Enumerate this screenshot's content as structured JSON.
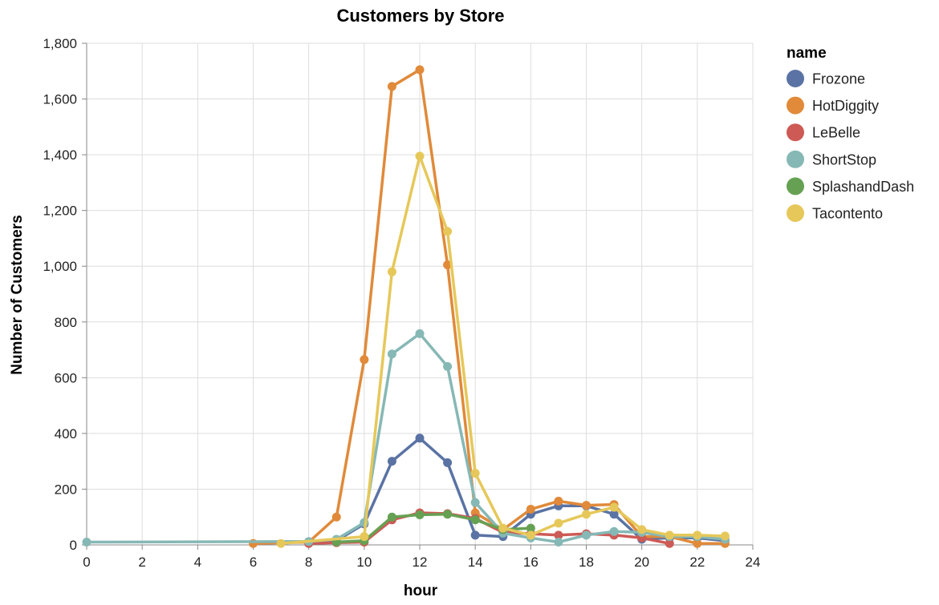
{
  "chart_data": {
    "type": "line",
    "title": "Customers by Store",
    "xlabel": "hour",
    "ylabel": "Number of Customers",
    "xlim": [
      0,
      24
    ],
    "ylim": [
      0,
      1800
    ],
    "x_ticks": [
      0,
      2,
      4,
      6,
      8,
      10,
      12,
      14,
      16,
      18,
      20,
      22,
      24
    ],
    "y_ticks": [
      0,
      200,
      400,
      600,
      800,
      1000,
      1200,
      1400,
      1600,
      1800
    ],
    "x_tick_labels": [
      "0",
      "2",
      "4",
      "6",
      "8",
      "10",
      "12",
      "14",
      "16",
      "18",
      "20",
      "22",
      "24"
    ],
    "y_tick_labels": [
      "0",
      "200",
      "400",
      "600",
      "800",
      "1,000",
      "1,200",
      "1,400",
      "1,600",
      "1,800"
    ],
    "grid": true,
    "legend": {
      "title": "name",
      "placement": "right"
    },
    "series": [
      {
        "name": "Frozone",
        "color": "#5a73a4",
        "x": [
          8,
          9,
          10,
          11,
          12,
          13,
          14,
          15,
          16,
          17,
          18,
          19,
          20,
          21,
          22,
          23
        ],
        "y": [
          12,
          15,
          75,
          300,
          383,
          295,
          35,
          30,
          110,
          140,
          140,
          110,
          20,
          25,
          25,
          15
        ]
      },
      {
        "name": "HotDiggity",
        "color": "#e08a3a",
        "x": [
          6,
          8,
          9,
          10,
          11,
          12,
          13,
          14,
          15,
          16,
          17,
          18,
          19,
          20,
          21,
          22,
          23
        ],
        "y": [
          5,
          10,
          100,
          665,
          1645,
          1705,
          1005,
          115,
          55,
          128,
          157,
          142,
          145,
          30,
          30,
          5,
          5
        ]
      },
      {
        "name": "LeBelle",
        "color": "#cd5a55",
        "x": [
          8,
          9,
          10,
          11,
          12,
          13,
          14,
          15,
          16,
          17,
          18,
          19,
          20,
          21
        ],
        "y": [
          5,
          8,
          10,
          90,
          115,
          112,
          95,
          45,
          40,
          35,
          40,
          35,
          25,
          5
        ]
      },
      {
        "name": "ShortStop",
        "color": "#86b8b5",
        "x": [
          0,
          8,
          9,
          10,
          11,
          12,
          13,
          14,
          15,
          16,
          17,
          18,
          19,
          20,
          21,
          22,
          23
        ],
        "y": [
          10,
          12,
          20,
          80,
          685,
          758,
          640,
          152,
          42,
          25,
          10,
          35,
          48,
          45,
          30,
          30,
          20
        ]
      },
      {
        "name": "SplashandDash",
        "color": "#66a153",
        "x": [
          9,
          10,
          11,
          12,
          13,
          14,
          15,
          16
        ],
        "y": [
          10,
          15,
          100,
          108,
          110,
          90,
          55,
          60
        ]
      },
      {
        "name": "Tacontento",
        "color": "#e6c85a",
        "x": [
          7,
          10,
          11,
          12,
          13,
          14,
          15,
          16,
          17,
          18,
          19,
          20,
          21,
          22,
          23
        ],
        "y": [
          5,
          30,
          980,
          1395,
          1125,
          257,
          60,
          35,
          78,
          110,
          135,
          55,
          35,
          35,
          32
        ]
      }
    ]
  }
}
